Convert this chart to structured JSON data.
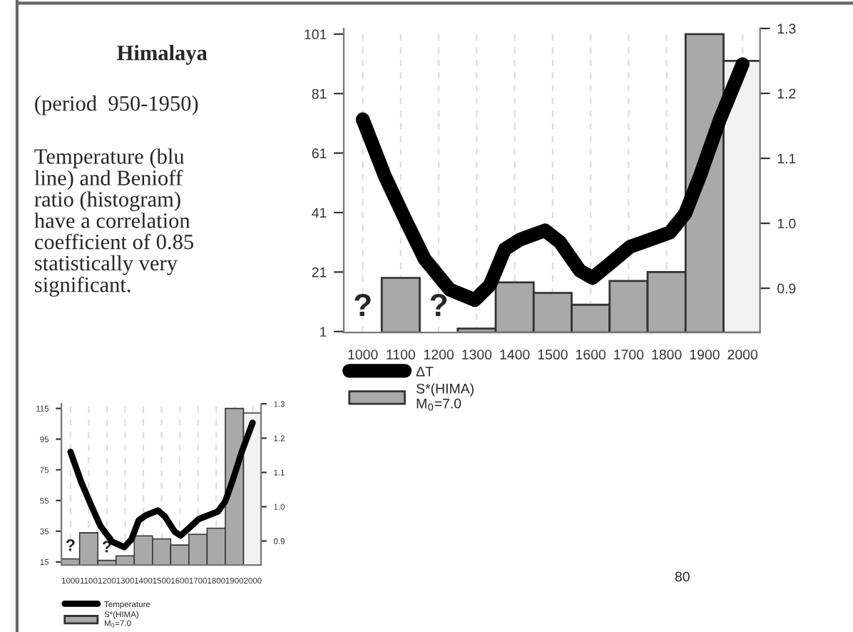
{
  "chart_data": [
    {
      "type": "bar",
      "title": "Himalaya",
      "subtitle": "(period  950-1950)",
      "annotations": [
        "Temperature (blu\nline) and Benioff\nratio (histogram)\nhave a correlation\ncoefficient of 0.85\nstatistically very\nsignificant.",
        "80",
        "?",
        "?"
      ],
      "series": [
        {
          "name": "ΔT",
          "type": "line",
          "axis": "y2",
          "color": "#000000",
          "x": [
            1000,
            1058,
            1111,
            1163,
            1229,
            1295,
            1335,
            1374,
            1414,
            1480,
            1519,
            1572,
            1605,
            1651,
            1704,
            1757,
            1809,
            1849,
            1888,
            1941,
            2000
          ],
          "values": [
            1.16,
            1.073,
            1.007,
            0.945,
            0.898,
            0.882,
            0.905,
            0.96,
            0.975,
            0.989,
            0.971,
            0.927,
            0.916,
            0.938,
            0.964,
            0.975,
            0.986,
            1.015,
            1.073,
            1.161,
            1.245
          ]
        },
        {
          "name": "S*(HIMA)\nM$_{0}$=7.0",
          "color": "#a9a9a9",
          "colors": [
            "#a9a9a9",
            "#a9a9a9",
            "#a9a9a9",
            "#a9a9a9",
            "#a9a9a9",
            "#a9a9a9",
            "#a9a9a9",
            "#a9a9a9",
            "#f2f2f2"
          ],
          "x": [
            1100,
            1300,
            1400,
            1500,
            1600,
            1700,
            1800,
            1900,
            2000
          ],
          "values": [
            19,
            2,
            17.5,
            14,
            10,
            18,
            21,
            101,
            92
          ]
        }
      ],
      "xlim": [
        950,
        2046
      ],
      "xticks": [
        1000,
        1100,
        1200,
        1300,
        1400,
        1500,
        1600,
        1700,
        1800,
        1900,
        2000
      ],
      "ylim": [
        0.7,
        102.9
      ],
      "yticks": [
        1,
        21,
        41,
        61,
        81,
        101
      ],
      "y2lim": [
        0.832,
        1.3
      ],
      "y2ticks": [
        0.9,
        {
          "value": 1.0,
          "label": "1.0"
        },
        1.1,
        1.2,
        1.3
      ],
      "grid": "x",
      "legend": "bottom left"
    },
    {
      "type": "bar",
      "series": [
        {
          "name": "Temperature",
          "type": "line",
          "axis": "y2",
          "color": "#000000",
          "x": [
            1000,
            1058,
            1111,
            1163,
            1229,
            1295,
            1335,
            1374,
            1414,
            1480,
            1519,
            1572,
            1605,
            1651,
            1704,
            1757,
            1809,
            1849,
            1888,
            1941,
            2000
          ],
          "values": [
            1.16,
            1.073,
            1.007,
            0.945,
            0.898,
            0.882,
            0.905,
            0.96,
            0.975,
            0.989,
            0.971,
            0.927,
            0.916,
            0.938,
            0.964,
            0.975,
            0.986,
            1.015,
            1.073,
            1.161,
            1.245
          ]
        },
        {
          "name": "S*(HIMA)\nM$_{0}$=7.0",
          "color": "#a9a9a9",
          "value_labels": [
            "?",
            null,
            "?",
            null,
            null,
            null,
            null,
            null,
            null,
            null,
            null
          ],
          "colors": [
            "#a9a9a9",
            "#a9a9a9",
            "#a9a9a9",
            "#a9a9a9",
            "#a9a9a9",
            "#a9a9a9",
            "#a9a9a9",
            "#a9a9a9",
            "#a9a9a9",
            "#a9a9a9",
            "#f2f2f2"
          ],
          "x": [
            1000,
            1100,
            1200,
            1300,
            1400,
            1500,
            1600,
            1700,
            1800,
            1900,
            2000
          ],
          "values": [
            17,
            34,
            16,
            19,
            32,
            30,
            26,
            33,
            37,
            115,
            112
          ]
        }
      ],
      "xlim": [
        950,
        2046
      ],
      "xticks": [
        1000,
        1100,
        1200,
        1300,
        1400,
        1500,
        1600,
        1700,
        1800,
        1900,
        2000
      ],
      "ylim": [
        13,
        118
      ],
      "yticks": [
        15,
        35,
        55,
        75,
        95,
        115
      ],
      "y2lim": [
        0.83,
        1.3
      ],
      "y2ticks": [
        0.9,
        {
          "value": 1.0,
          "label": "1.0"
        },
        1.1,
        1.2,
        1.3
      ],
      "grid": "x",
      "legend": "bottom left"
    }
  ]
}
